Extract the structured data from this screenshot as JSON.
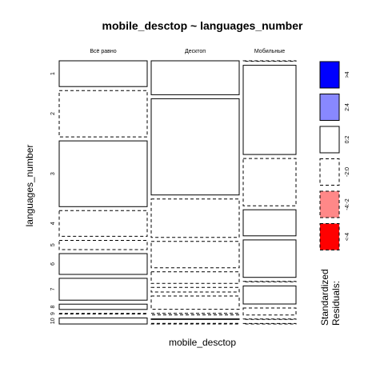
{
  "chart_data": {
    "type": "mosaic",
    "title": "mobile_desctop ~ languages_number",
    "xlabel": "mobile_desctop",
    "ylabel": "languages_number",
    "columns": [
      {
        "label": "Всё равно",
        "cells": [
          {
            "level": "1",
            "proportion": 0.098,
            "residual_class": "0:2"
          },
          {
            "level": "2",
            "proportion": 0.176,
            "residual_class": "-2:0"
          },
          {
            "level": "3",
            "proportion": 0.25,
            "residual_class": "0:2"
          },
          {
            "level": "4",
            "proportion": 0.098,
            "residual_class": "-2:0"
          },
          {
            "level": "5",
            "proportion": 0.035,
            "residual_class": "-2:0"
          },
          {
            "level": "6",
            "proportion": 0.079,
            "residual_class": "0:2"
          },
          {
            "level": "7",
            "proportion": 0.083,
            "residual_class": "0:2"
          },
          {
            "level": "8",
            "proportion": 0.02,
            "residual_class": "0:2"
          },
          {
            "level": "9",
            "proportion": 0.002,
            "residual_class": "-2:0"
          },
          {
            "level": "10",
            "proportion": 0.023,
            "residual_class": "0:2"
          }
        ]
      },
      {
        "label": "Десктоп",
        "cells": [
          {
            "level": "1",
            "proportion": 0.125,
            "residual_class": "0:2"
          },
          {
            "level": "2",
            "proportion": 0.355,
            "residual_class": "0:2"
          },
          {
            "level": "3",
            "proportion": 0.142,
            "residual_class": "-2:0"
          },
          {
            "level": "4",
            "proportion": 0.097,
            "residual_class": "-2:0"
          },
          {
            "level": "5",
            "proportion": 0.043,
            "residual_class": "-2:0"
          },
          {
            "level": "6",
            "proportion": 0.017,
            "residual_class": "-2:0"
          },
          {
            "level": "7",
            "proportion": 0.049,
            "residual_class": "-2:0"
          },
          {
            "level": "8",
            "proportion": 0.006,
            "residual_class": "-2:0"
          },
          {
            "level": "9",
            "proportion": 0.002,
            "residual_class": "0:2"
          },
          {
            "level": "10",
            "proportion": 0.002,
            "residual_class": "-2:0"
          }
        ]
      },
      {
        "label": "Мобильные",
        "cells": [
          {
            "level": "1",
            "proportion": 0.002,
            "residual_class": "-2:0"
          },
          {
            "level": "2",
            "proportion": 0.345,
            "residual_class": "0:2"
          },
          {
            "level": "3",
            "proportion": 0.183,
            "residual_class": "-2:0"
          },
          {
            "level": "4",
            "proportion": 0.101,
            "residual_class": "0:2"
          },
          {
            "level": "5",
            "proportion": 0.145,
            "residual_class": "0:2"
          },
          {
            "level": "6",
            "proportion": 0.002,
            "residual_class": "-2:0"
          },
          {
            "level": "7",
            "proportion": 0.07,
            "residual_class": "0:2"
          },
          {
            "level": "8",
            "proportion": 0.027,
            "residual_class": "-2:0"
          },
          {
            "level": "9",
            "proportion": 0.002,
            "residual_class": "-2:0"
          },
          {
            "level": "10",
            "proportion": 0.002,
            "residual_class": "-2:0"
          }
        ]
      }
    ],
    "column_widths": [
      0.372,
      0.372,
      0.223
    ],
    "legend": {
      "title_lines": [
        "Standardized",
        "Residuals:"
      ],
      "placement": "right",
      "entries": [
        {
          "label": ">4",
          "fill": "#0000FF",
          "dashed": false
        },
        {
          "label": "2:4",
          "fill": "#8888FF",
          "dashed": false
        },
        {
          "label": "0:2",
          "fill": "#FFFFFF",
          "dashed": false
        },
        {
          "label": "-2:0",
          "fill": "#FFFFFF",
          "dashed": true
        },
        {
          "label": "-4:-2",
          "fill": "#FF8888",
          "dashed": true
        },
        {
          "label": "<-4",
          "fill": "#FF0000",
          "dashed": true
        }
      ]
    }
  }
}
